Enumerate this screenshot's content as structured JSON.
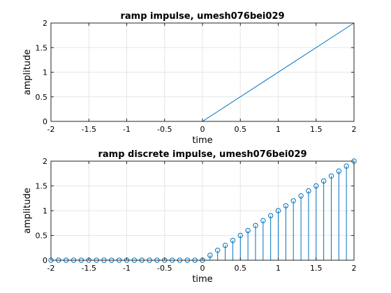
{
  "figure": {
    "background": "#ffffff",
    "axes_color": "#262626",
    "grid_color": "#e6e6e6",
    "series_color": "#0072bd"
  },
  "chart_data": [
    {
      "type": "line",
      "title": "ramp impulse, umesh076bei029",
      "xlabel": "time",
      "ylabel": "amplitude",
      "xlim": [
        -2,
        2
      ],
      "ylim": [
        0,
        2
      ],
      "grid": true,
      "xticks": [
        "-2",
        "-1.5",
        "-1",
        "-0.5",
        "0",
        "0.5",
        "1",
        "1.5",
        "2"
      ],
      "yticks": [
        "0",
        "0.5",
        "1",
        "1.5",
        "2"
      ],
      "x": [
        -2,
        0,
        2
      ],
      "y": [
        0,
        0,
        2
      ]
    },
    {
      "type": "stem",
      "title": "ramp discrete impulse, umesh076bei029",
      "xlabel": "time",
      "ylabel": "amplitude",
      "xlim": [
        -2,
        2
      ],
      "ylim": [
        0,
        2
      ],
      "grid": true,
      "xticks": [
        "-2",
        "-1.5",
        "-1",
        "-0.5",
        "0",
        "0.5",
        "1",
        "1.5",
        "2"
      ],
      "yticks": [
        "0",
        "0.5",
        "1",
        "1.5",
        "2"
      ],
      "x": [
        -2,
        -1.9,
        -1.8,
        -1.7,
        -1.6,
        -1.5,
        -1.4,
        -1.3,
        -1.2,
        -1.1,
        -1,
        -0.9,
        -0.8,
        -0.7,
        -0.6,
        -0.5,
        -0.4,
        -0.3,
        -0.2,
        -0.1,
        0,
        0.1,
        0.2,
        0.3,
        0.4,
        0.5,
        0.6,
        0.7,
        0.8,
        0.9,
        1,
        1.1,
        1.2,
        1.3,
        1.4,
        1.5,
        1.6,
        1.7,
        1.8,
        1.9,
        2
      ],
      "y": [
        0,
        0,
        0,
        0,
        0,
        0,
        0,
        0,
        0,
        0,
        0,
        0,
        0,
        0,
        0,
        0,
        0,
        0,
        0,
        0,
        0,
        0.1,
        0.2,
        0.3,
        0.4,
        0.5,
        0.6,
        0.7,
        0.8,
        0.9,
        1,
        1.1,
        1.2,
        1.3,
        1.4,
        1.5,
        1.6,
        1.7,
        1.8,
        1.9,
        2
      ]
    }
  ]
}
